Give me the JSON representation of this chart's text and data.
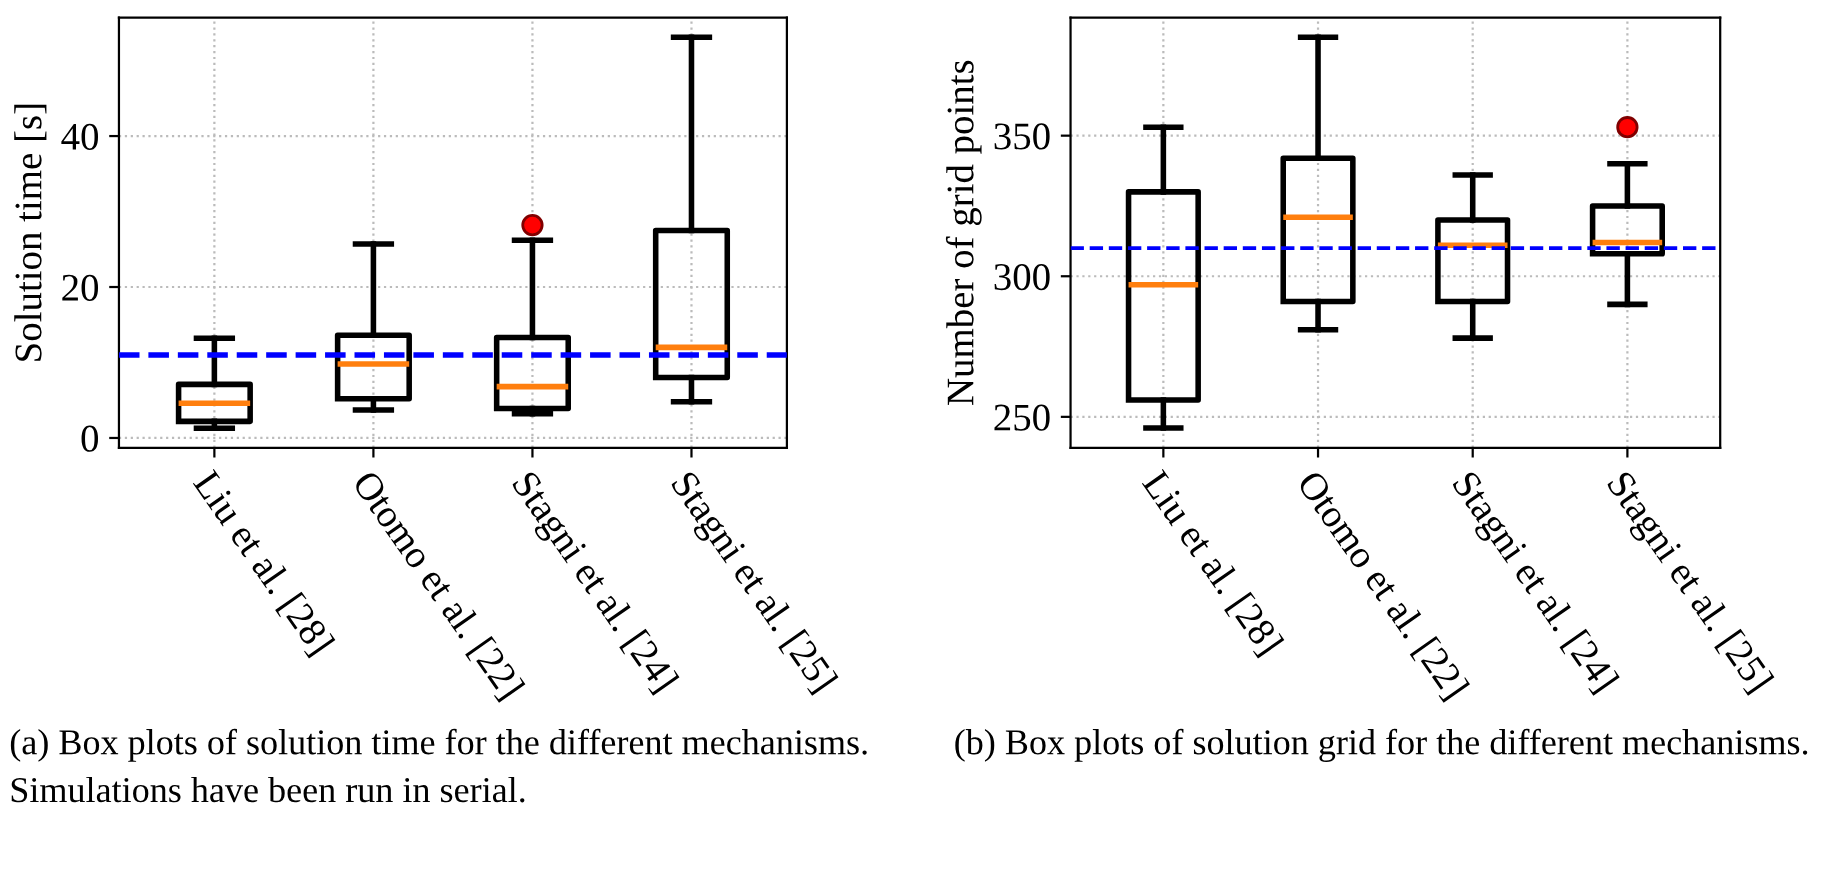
{
  "chart_data": [
    {
      "type": "box",
      "ylabel": "Solution time [s]",
      "categories": [
        "Liu et al. [28]",
        "Otomo et al. [22]",
        "Stagni et al. [24]",
        "Stagni et al. [25]"
      ],
      "boxes": [
        {
          "low": 1.3,
          "q1": 2.2,
          "median": 4.6,
          "q3": 7.1,
          "high": 13.2
        },
        {
          "low": 3.7,
          "q1": 5.2,
          "median": 9.8,
          "q3": 13.6,
          "high": 25.7
        },
        {
          "low": 3.2,
          "q1": 3.9,
          "median": 6.8,
          "q3": 13.3,
          "high": 26.2,
          "outliers": [
            28.2
          ]
        },
        {
          "low": 4.8,
          "q1": 8.0,
          "median": 12.0,
          "q3": 27.5,
          "high": 53.1
        }
      ],
      "ylim": [
        -1.3,
        55.7
      ],
      "yticks": [
        0,
        20,
        40
      ],
      "grid": true,
      "ref_lines": [
        {
          "axis": "y",
          "value": 11.0,
          "color": "#0000ff",
          "line_style": "dashed"
        }
      ],
      "annotations": [
        "(a) Box plots of solution time for the different mechanisms. Simulations have been run in serial."
      ]
    },
    {
      "type": "box",
      "ylabel": "Number of grid points",
      "categories": [
        "Liu et al. [28]",
        "Otomo et al. [22]",
        "Stagni et al. [24]",
        "Stagni et al. [25]"
      ],
      "boxes": [
        {
          "low": 246,
          "q1": 256,
          "median": 297,
          "q3": 330,
          "high": 353
        },
        {
          "low": 281,
          "q1": 291,
          "median": 321,
          "q3": 342,
          "high": 385
        },
        {
          "low": 278,
          "q1": 291,
          "median": 311,
          "q3": 320,
          "high": 336
        },
        {
          "low": 290,
          "q1": 308,
          "median": 312,
          "q3": 325,
          "high": 340,
          "outliers": [
            353
          ]
        }
      ],
      "ylim": [
        239,
        392
      ],
      "yticks": [
        250,
        300,
        350
      ],
      "grid": true,
      "ref_lines": [
        {
          "axis": "y",
          "value": 310,
          "color": "#0000ff",
          "line_style": "dashed"
        }
      ],
      "annotations": [
        "(b) Box plots of solution grid for the different mechanisms."
      ]
    }
  ]
}
